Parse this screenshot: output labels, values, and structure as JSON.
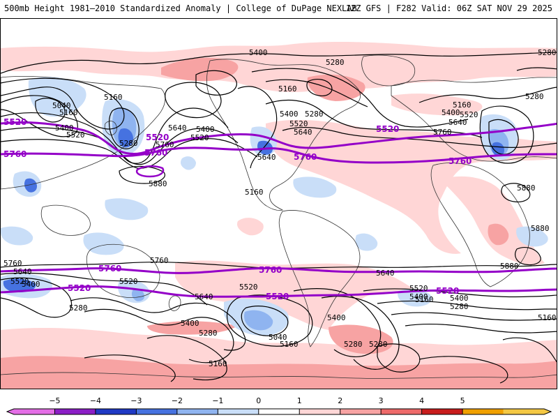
{
  "header": {
    "title": "500mb Height 1981–2010 Standardized Anomaly | College of DuPage NEXLAB",
    "run_info": "12Z GFS | F282 Valid: 06Z SAT NOV 29 2025"
  },
  "colorbar": {
    "ticks": [
      "−5",
      "−4",
      "−3",
      "−2",
      "−1",
      "0",
      "1",
      "2",
      "3",
      "4",
      "5"
    ],
    "colors": [
      "#e46ee6",
      "#8b1ec6",
      "#1f39c4",
      "#4672e0",
      "#8fb4f0",
      "#c9def8",
      "#ffffff",
      "#ffd6d6",
      "#f7a3a3",
      "#ee6a6a",
      "#c81c1c",
      "#f0a000",
      "#f4c844"
    ]
  },
  "contours": {
    "thin_labels": [
      "5400",
      "5280",
      "5280",
      "5160",
      "5040",
      "5160",
      "5160",
      "5400",
      "5520",
      "5280",
      "5640",
      "5400",
      "5520",
      "5760",
      "5880",
      "5400",
      "5520",
      "5640",
      "5280",
      "5160",
      "5400",
      "5520",
      "5640",
      "5760",
      "5280",
      "5640",
      "5520",
      "5880",
      "5880",
      "5880",
      "5760",
      "5640",
      "5400",
      "5520",
      "5280",
      "5760",
      "5640",
      "5520",
      "5400",
      "5280",
      "5040",
      "5160",
      "5400",
      "5160",
      "5280",
      "5640",
      "5400",
      "5280",
      "5520",
      "5400",
      "5280",
      "5160",
      "5160",
      "5160"
    ],
    "bold_labels": [
      "5520",
      "5760",
      "5520",
      "5760",
      "5520",
      "5760",
      "5760",
      "5520",
      "5760",
      "5520",
      "5760",
      "5520"
    ]
  },
  "colors": {
    "bold_contour": "#9400c8",
    "thin_contour": "#000000",
    "coastline": "#333333"
  }
}
